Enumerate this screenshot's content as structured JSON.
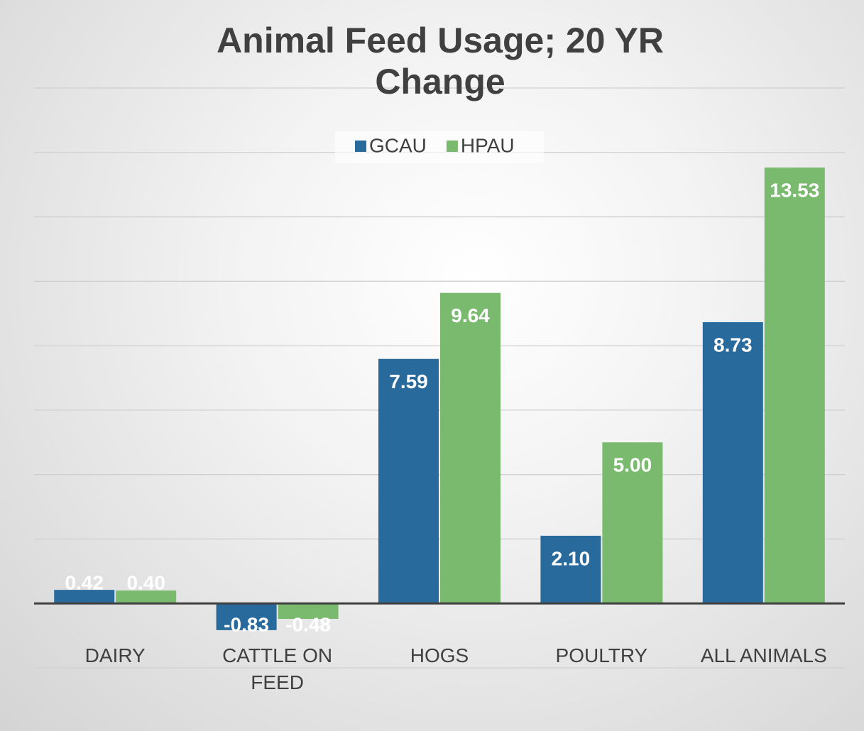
{
  "chart_data": {
    "type": "bar",
    "title": "Animal Feed Usage; 20 YR Change",
    "categories": [
      "DAIRY",
      "CATTLE ON FEED",
      "HOGS",
      "POULTRY",
      "ALL ANIMALS"
    ],
    "series": [
      {
        "name": "GCAU",
        "color": "#286a9b",
        "values": [
          0.42,
          -0.83,
          7.59,
          2.1,
          8.73
        ],
        "value_labels": [
          "0.42",
          "-0.83",
          "7.59",
          "2.10",
          "8.73"
        ]
      },
      {
        "name": "HPAU",
        "color": "#7aba6e",
        "values": [
          0.4,
          -0.48,
          9.64,
          5,
          13.53
        ],
        "value_labels": [
          "0.40",
          "-0.48",
          "9.64",
          "5.00",
          "13.53"
        ]
      }
    ],
    "ylim": [
      -2,
      16
    ],
    "yticks": [
      -2,
      0,
      2,
      4,
      6,
      8,
      10,
      12,
      14,
      16
    ],
    "grid": true,
    "legend": "top"
  }
}
